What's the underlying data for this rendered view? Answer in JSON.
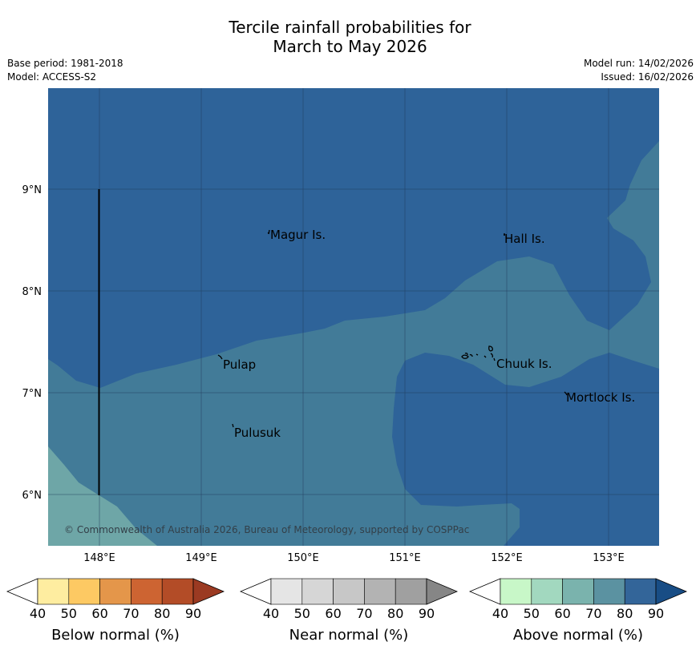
{
  "title_line1": "Tercile rainfall probabilities for",
  "title_line2": "March to May 2026",
  "base_period": "Base period: 1981-2018",
  "model": "Model: ACCESS-S2",
  "model_run": "Model run: 14/02/2026",
  "issued": "Issued: 16/02/2026",
  "map": {
    "lat_labels": [
      "9°N",
      "8°N",
      "7°N",
      "6°N"
    ],
    "lon_labels": [
      "148°E",
      "149°E",
      "150°E",
      "151°E",
      "152°E",
      "153°E"
    ],
    "places": [
      "Magur Is.",
      "Hall Is.",
      "Pulap",
      "Chuuk Is.",
      "Mortlock Is.",
      "Pulusuk"
    ],
    "copyright": "© Commonwealth of Australia 2026, Bureau of Meteorology, supported by COSPPac",
    "colors": {
      "above_80": "#2e6399",
      "above_70": "#427b98",
      "above_60": "#6ea6a7",
      "gridline": "#1f3a5a",
      "boundary": "#000000"
    }
  },
  "colorbars": [
    {
      "title": "Below normal (%)",
      "ticks": [
        "40",
        "50",
        "60",
        "70",
        "80",
        "90"
      ],
      "colors": [
        "#ffffff",
        "#feeda0",
        "#fdc963",
        "#e4964a",
        "#cd6432",
        "#b34c27",
        "#9b3a22"
      ]
    },
    {
      "title": "Near normal (%)",
      "ticks": [
        "40",
        "50",
        "60",
        "70",
        "80",
        "90"
      ],
      "colors": [
        "#ffffff",
        "#e5e5e5",
        "#d6d6d6",
        "#c7c7c7",
        "#b3b3b3",
        "#a0a0a0",
        "#868686"
      ]
    },
    {
      "title": "Above normal (%)",
      "ticks": [
        "40",
        "50",
        "60",
        "70",
        "80",
        "90"
      ],
      "colors": [
        "#ffffff",
        "#c8f7c8",
        "#a2d8bf",
        "#7ab3ad",
        "#5b92a1",
        "#336599",
        "#184d85"
      ]
    }
  ]
}
